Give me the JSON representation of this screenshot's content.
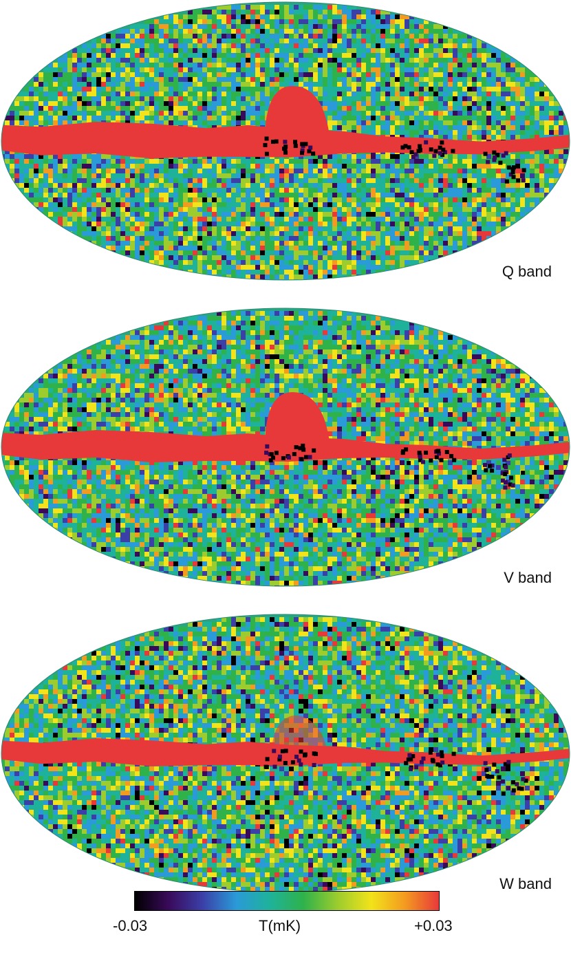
{
  "maps": [
    {
      "id": "q",
      "label": "Q band",
      "pattern": "strong-galactic-plane"
    },
    {
      "id": "v",
      "label": "V band",
      "pattern": "moderate-galactic-plane"
    },
    {
      "id": "w",
      "label": "W band",
      "pattern": "noisy-galactic-plane"
    }
  ],
  "colorbar": {
    "min_label": "-0.03",
    "max_label": "+0.03",
    "unit_label": "T(mK)",
    "colors": [
      "#000000",
      "#3a0a5a",
      "#3b3fa8",
      "#2a9ad8",
      "#1fb29a",
      "#2fb24a",
      "#9ccc2e",
      "#f2e31a",
      "#f39a20",
      "#e8393a"
    ]
  }
}
